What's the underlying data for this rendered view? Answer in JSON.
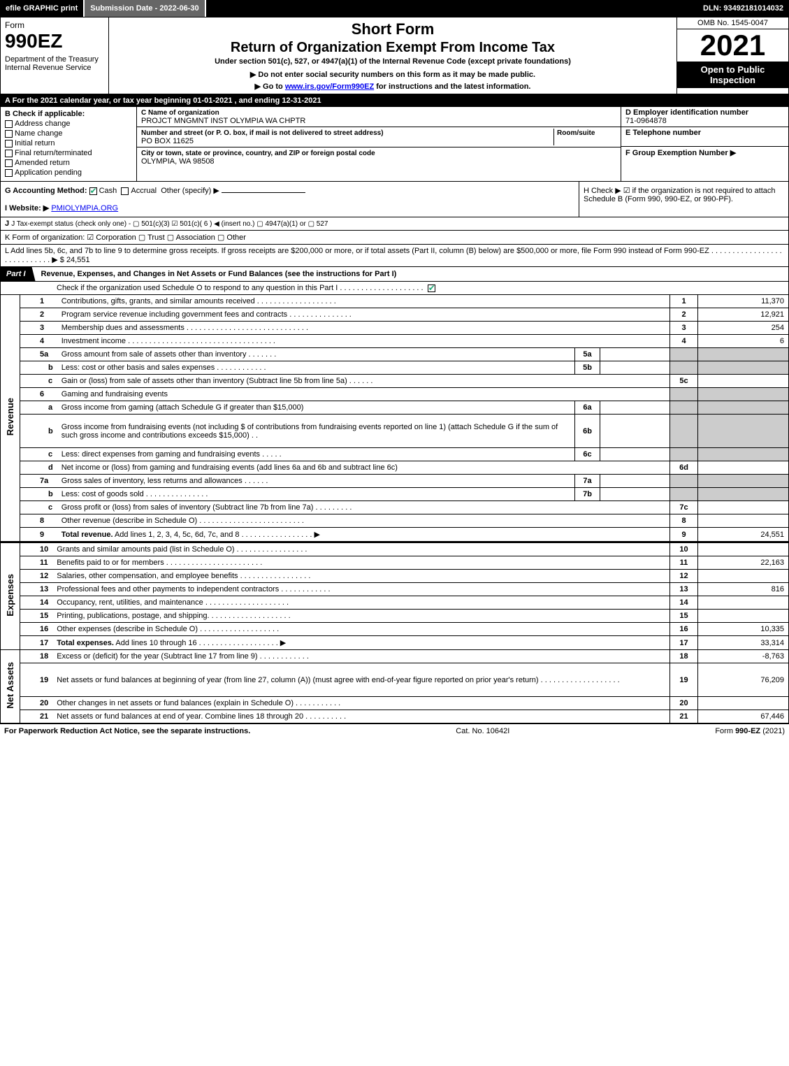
{
  "topbar": {
    "efile": "efile GRAPHIC print",
    "subdate": "Submission Date - 2022-06-30",
    "dln": "DLN: 93492181014032"
  },
  "header": {
    "form_word": "Form",
    "form_num": "990EZ",
    "dept": "Department of the Treasury\nInternal Revenue Service",
    "short_form": "Short Form",
    "title": "Return of Organization Exempt From Income Tax",
    "sub1": "Under section 501(c), 527, or 4947(a)(1) of the Internal Revenue Code (except private foundations)",
    "sub2": "▶ Do not enter social security numbers on this form as it may be made public.",
    "sub3_pre": "▶ Go to ",
    "sub3_link": "www.irs.gov/Form990EZ",
    "sub3_post": " for instructions and the latest information.",
    "omb": "OMB No. 1545-0047",
    "year": "2021",
    "pub": "Open to Public Inspection"
  },
  "lineA": "A  For the 2021 calendar year, or tax year beginning 01-01-2021 , and ending 12-31-2021",
  "sectionB": {
    "title": "B  Check if applicable:",
    "opts": [
      "Address change",
      "Name change",
      "Initial return",
      "Final return/terminated",
      "Amended return",
      "Application pending"
    ]
  },
  "sectionC": {
    "name_lbl": "C Name of organization",
    "name": "PROJCT MNGMNT INST OLYMPIA WA CHPTR",
    "addr_lbl": "Number and street (or P. O. box, if mail is not delivered to street address)",
    "room_lbl": "Room/suite",
    "addr": "PO BOX 11625",
    "city_lbl": "City or town, state or province, country, and ZIP or foreign postal code",
    "city": "OLYMPIA, WA   98508"
  },
  "sectionD": {
    "ein_lbl": "D Employer identification number",
    "ein": "71-0964878",
    "tel_lbl": "E Telephone number",
    "tel": "",
    "grp_lbl": "F Group Exemption Number   ▶",
    "grp": ""
  },
  "lineG": {
    "label": "G Accounting Method:",
    "cash": "Cash",
    "accrual": "Accrual",
    "other": "Other (specify) ▶"
  },
  "lineH": "H  Check ▶  ☑  if the organization is not required to attach Schedule B (Form 990, 990-EZ, or 990-PF).",
  "lineI": {
    "label": "I Website: ▶",
    "value": "PMIOLYMPIA.ORG"
  },
  "lineJ": "J Tax-exempt status (check only one) -  ▢ 501(c)(3)  ☑ 501(c)( 6 ) ◀ (insert no.)  ▢ 4947(a)(1) or  ▢ 527",
  "lineK": "K Form of organization:   ☑ Corporation   ▢ Trust   ▢ Association   ▢ Other",
  "lineL": {
    "text": "L Add lines 5b, 6c, and 7b to line 9 to determine gross receipts. If gross receipts are $200,000 or more, or if total assets (Part II, column (B) below) are $500,000 or more, file Form 990 instead of Form 990-EZ  .  .  .  .  .  .  .  .  .  .  .  .  .  .  .  .  .  .  .  .  .  .  .  .  .  .  .  .  ▶ $",
    "amount": "24,551"
  },
  "part1": {
    "tab": "Part I",
    "title": "Revenue, Expenses, and Changes in Net Assets or Fund Balances (see the instructions for Part I)",
    "check": "Check if the organization used Schedule O to respond to any question in this Part I  .  .  .  .  .  .  .  .  .  .  .  .  .  .  .  .  .  .  .  ."
  },
  "sidelabels": {
    "rev": "Revenue",
    "exp": "Expenses",
    "na": "Net Assets"
  },
  "revenue": [
    {
      "n": "1",
      "d": "Contributions, gifts, grants, and similar amounts received  .  .  .  .  .  .  .  .  .  .  .  .  .  .  .  .  .  .  .",
      "b": "1",
      "a": "11,370"
    },
    {
      "n": "2",
      "d": "Program service revenue including government fees and contracts  .  .  .  .  .  .  .  .  .  .  .  .  .  .  .",
      "b": "2",
      "a": "12,921"
    },
    {
      "n": "3",
      "d": "Membership dues and assessments  .  .  .  .  .  .  .  .  .  .  .  .  .  .  .  .  .  .  .  .  .  .  .  .  .  .  .  .  .",
      "b": "3",
      "a": "254"
    },
    {
      "n": "4",
      "d": "Investment income  .  .  .  .  .  .  .  .  .  .  .  .  .  .  .  .  .  .  .  .  .  .  .  .  .  .  .  .  .  .  .  .  .  .  .",
      "b": "4",
      "a": "6"
    },
    {
      "n": "5a",
      "d": "Gross amount from sale of assets other than inventory  .  .  .  .  .  .  .",
      "ib": "5a",
      "inline": true
    },
    {
      "n": "b",
      "d": "Less: cost or other basis and sales expenses  .  .  .  .  .  .  .  .  .  .  .  .",
      "ib": "5b",
      "inline": true,
      "sub": true
    },
    {
      "n": "c",
      "d": "Gain or (loss) from sale of assets other than inventory (Subtract line 5b from line 5a)  .  .  .  .  .  .",
      "b": "5c",
      "a": "",
      "sub": true
    },
    {
      "n": "6",
      "d": "Gaming and fundraising events",
      "noamt": true
    },
    {
      "n": "a",
      "d": "Gross income from gaming (attach Schedule G if greater than $15,000)",
      "ib": "6a",
      "inline": true,
      "sub": true
    },
    {
      "n": "b",
      "d": "Gross income from fundraising events (not including $                              of contributions from fundraising events reported on line 1) (attach Schedule G if the sum of such gross income and contributions exceeds $15,000)     .   .",
      "ib": "6b",
      "inline": true,
      "sub": true,
      "tall": true
    },
    {
      "n": "c",
      "d": "Less: direct expenses from gaming and fundraising events   .  .  .  .  .",
      "ib": "6c",
      "inline": true,
      "sub": true
    },
    {
      "n": "d",
      "d": "Net income or (loss) from gaming and fundraising events (add lines 6a and 6b and subtract line 6c)",
      "b": "6d",
      "a": "",
      "sub": true
    },
    {
      "n": "7a",
      "d": "Gross sales of inventory, less returns and allowances  .  .  .  .  .  .",
      "ib": "7a",
      "inline": true
    },
    {
      "n": "b",
      "d": "Less: cost of goods sold           .   .   .   .   .   .   .   .   .   .   .   .   .   .   .",
      "ib": "7b",
      "inline": true,
      "sub": true
    },
    {
      "n": "c",
      "d": "Gross profit or (loss) from sales of inventory (Subtract line 7b from line 7a)  .  .  .  .  .  .  .  .  .",
      "b": "7c",
      "a": "",
      "sub": true
    },
    {
      "n": "8",
      "d": "Other revenue (describe in Schedule O)  .  .  .  .  .  .  .  .  .  .  .  .  .  .  .  .  .  .  .  .  .  .  .  .  .",
      "b": "8",
      "a": ""
    },
    {
      "n": "9",
      "d": "<b>Total revenue.</b> Add lines 1, 2, 3, 4, 5c, 6d, 7c, and 8   .   .   .   .   .   .   .   .   .   .   .   .   .   .   .   .   .   ▶",
      "b": "9",
      "a": "24,551"
    }
  ],
  "expenses": [
    {
      "n": "10",
      "d": "Grants and similar amounts paid (list in Schedule O)  .   .   .   .   .   .   .   .   .   .   .   .   .   .   .   .   .",
      "b": "10",
      "a": ""
    },
    {
      "n": "11",
      "d": "Benefits paid to or for members        .   .   .   .   .   .   .   .   .   .   .   .   .   .   .   .   .   .   .   .   .   .   .",
      "b": "11",
      "a": "22,163"
    },
    {
      "n": "12",
      "d": "Salaries, other compensation, and employee benefits  .   .   .   .   .   .   .   .   .   .   .   .   .   .   .   .   .",
      "b": "12",
      "a": ""
    },
    {
      "n": "13",
      "d": "Professional fees and other payments to independent contractors  .   .   .   .   .   .   .   .   .   .   .   .",
      "b": "13",
      "a": "816"
    },
    {
      "n": "14",
      "d": "Occupancy, rent, utilities, and maintenance .   .   .   .   .   .   .   .   .   .   .   .   .   .   .   .   .   .   .   .",
      "b": "14",
      "a": ""
    },
    {
      "n": "15",
      "d": "Printing, publications, postage, and shipping.   .   .   .   .   .   .   .   .   .   .   .   .   .   .   .   .   .   .   .",
      "b": "15",
      "a": ""
    },
    {
      "n": "16",
      "d": "Other expenses (describe in Schedule O)      .   .   .   .   .   .   .   .   .   .   .   .   .   .   .   .   .   .   .",
      "b": "16",
      "a": "10,335"
    },
    {
      "n": "17",
      "d": "<b>Total expenses.</b> Add lines 10 through 16      .   .   .   .   .   .   .   .   .   .   .   .   .   .   .   .   .   .   .   ▶",
      "b": "17",
      "a": "33,314"
    }
  ],
  "netassets": [
    {
      "n": "18",
      "d": "Excess or (deficit) for the year (Subtract line 17 from line 9)         .   .   .   .   .   .   .   .   .   .   .   .",
      "b": "18",
      "a": "-8,763"
    },
    {
      "n": "19",
      "d": "Net assets or fund balances at beginning of year (from line 27, column (A)) (must agree with end-of-year figure reported on prior year's return) .   .   .   .   .   .   .   .   .   .   .   .   .   .   .   .   .   .   .",
      "b": "19",
      "a": "76,209",
      "tall": true
    },
    {
      "n": "20",
      "d": "Other changes in net assets or fund balances (explain in Schedule O)  .   .   .   .   .   .   .   .   .   .   .",
      "b": "20",
      "a": ""
    },
    {
      "n": "21",
      "d": "Net assets or fund balances at end of year. Combine lines 18 through 20  .   .   .   .   .   .   .   .   .   .",
      "b": "21",
      "a": "67,446"
    }
  ],
  "footer": {
    "left": "For Paperwork Reduction Act Notice, see the separate instructions.",
    "mid": "Cat. No. 10642I",
    "right_pre": "Form ",
    "right_form": "990-EZ",
    "right_post": " (2021)"
  }
}
